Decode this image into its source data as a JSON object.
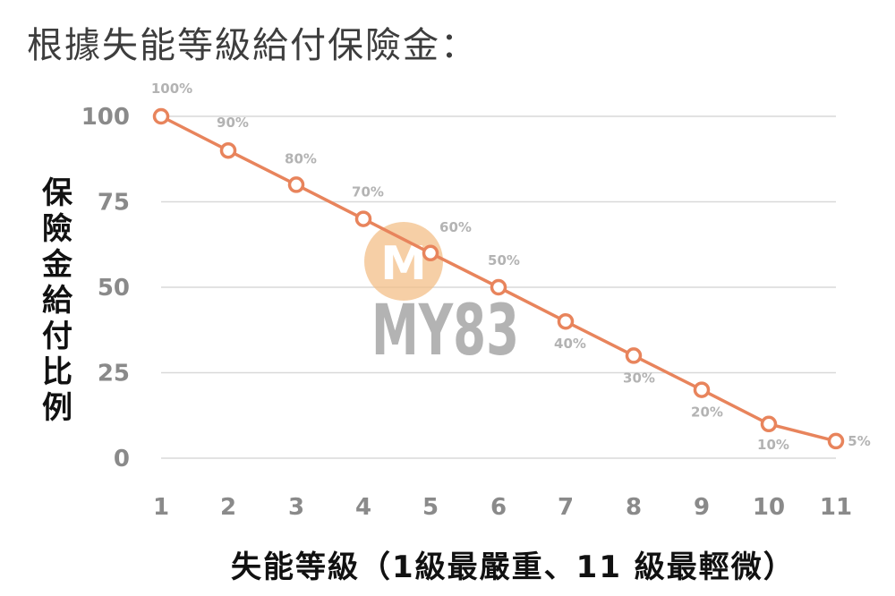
{
  "title": "根據失能等級給付保險金：",
  "watermark": {
    "text": "MY83",
    "badge": "M"
  },
  "chart_data": {
    "type": "line",
    "xlabel": "失能等級（1級最嚴重、11 級最輕微）",
    "ylabel": "保險金給付比例",
    "x": [
      1,
      2,
      3,
      4,
      5,
      6,
      7,
      8,
      9,
      10,
      11
    ],
    "values": [
      100,
      90,
      80,
      70,
      60,
      50,
      40,
      30,
      20,
      10,
      5
    ],
    "data_labels": [
      "100%",
      "90%",
      "80%",
      "70%",
      "60%",
      "50%",
      "40%",
      "30%",
      "20%",
      "10%",
      "5%"
    ],
    "x_ticks": [
      "1",
      "2",
      "3",
      "4",
      "5",
      "6",
      "7",
      "8",
      "9",
      "10",
      "11"
    ],
    "y_ticks": [
      "0",
      "25",
      "50",
      "75",
      "100"
    ],
    "ylim": [
      0,
      100
    ],
    "grid": true,
    "line_color": "#e8845c",
    "grid_color": "#d9d9d9"
  }
}
